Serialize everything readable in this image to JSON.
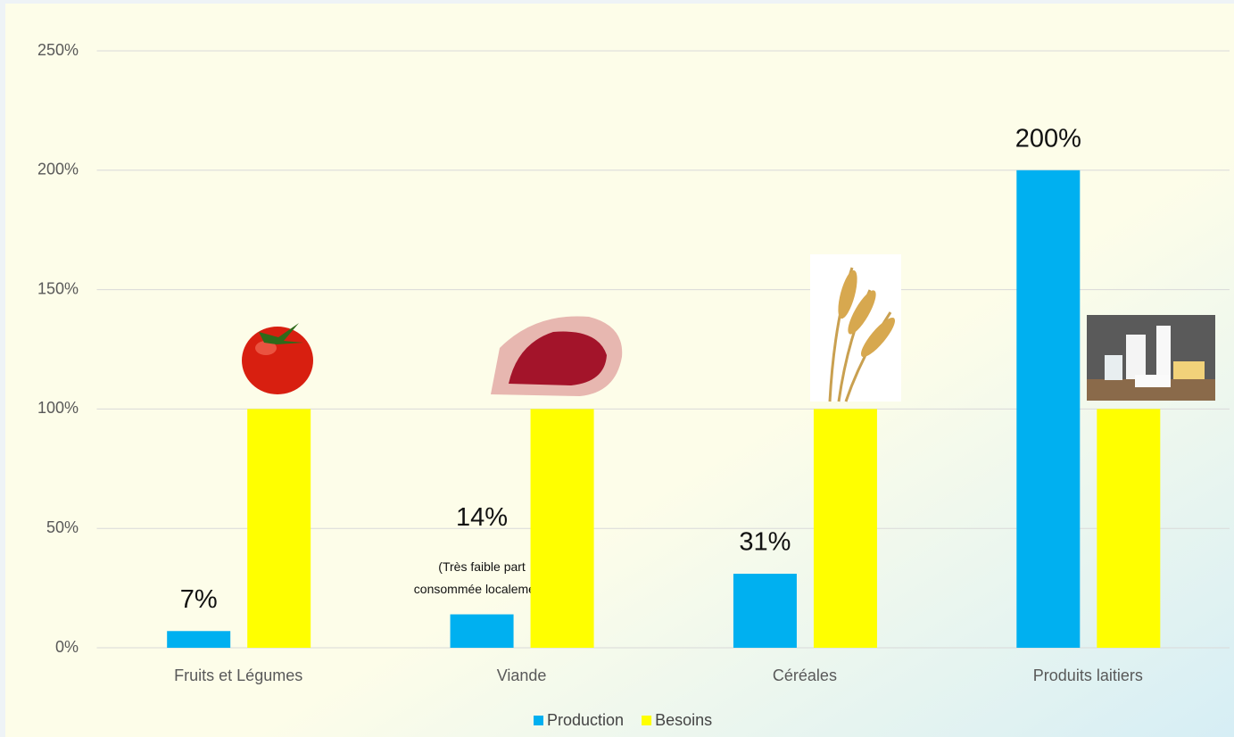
{
  "chart_data": {
    "type": "bar",
    "categories": [
      "Fruits et Légumes",
      "Viande",
      "Céréales",
      "Produits laitiers"
    ],
    "series": [
      {
        "name": "Production",
        "color": "#00b0f0",
        "values": [
          7,
          14,
          31,
          200
        ],
        "value_labels": [
          "7%",
          "14%",
          "31%",
          "200%"
        ],
        "value_notes": [
          null,
          [
            "(Très faible part",
            "consommée localement)"
          ],
          null,
          null
        ]
      },
      {
        "name": "Besoins",
        "color": "#ffff00",
        "values": [
          100,
          100,
          100,
          100
        ]
      }
    ],
    "ylim": [
      0,
      250
    ],
    "yticks": [
      {
        "value": 0,
        "label": "0%"
      },
      {
        "value": 50,
        "label": "50%"
      },
      {
        "value": 100,
        "label": "100%"
      },
      {
        "value": 150,
        "label": "150%"
      },
      {
        "value": 200,
        "label": "200%"
      },
      {
        "value": 250,
        "label": "250%"
      }
    ],
    "grid": true,
    "legend": "bottom"
  }
}
